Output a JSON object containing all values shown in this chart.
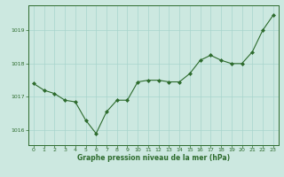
{
  "x": [
    0,
    1,
    2,
    3,
    4,
    5,
    6,
    7,
    8,
    9,
    10,
    11,
    12,
    13,
    14,
    15,
    16,
    17,
    18,
    19,
    20,
    21,
    22,
    23
  ],
  "y": [
    1017.4,
    1017.2,
    1017.1,
    1016.9,
    1016.85,
    1016.3,
    1015.9,
    1016.55,
    1016.9,
    1016.9,
    1017.45,
    1017.5,
    1017.5,
    1017.45,
    1017.45,
    1017.7,
    1018.1,
    1018.25,
    1018.1,
    1018.0,
    1018.0,
    1018.35,
    1019.0,
    1019.45
  ],
  "line_color": "#2d6b2d",
  "marker_color": "#2d6b2d",
  "bg_color": "#cce8e0",
  "grid_color": "#a8d4cc",
  "border_color": "#2d6b2d",
  "xlabel": "Graphe pression niveau de la mer (hPa)",
  "xlabel_color": "#2d6b2d",
  "tick_color": "#2d6b2d",
  "ylim": [
    1015.55,
    1019.75
  ],
  "yticks": [
    1016,
    1017,
    1018,
    1019
  ],
  "xlim": [
    -0.5,
    23.5
  ],
  "xticks": [
    0,
    1,
    2,
    3,
    4,
    5,
    6,
    7,
    8,
    9,
    10,
    11,
    12,
    13,
    14,
    15,
    16,
    17,
    18,
    19,
    20,
    21,
    22,
    23
  ]
}
